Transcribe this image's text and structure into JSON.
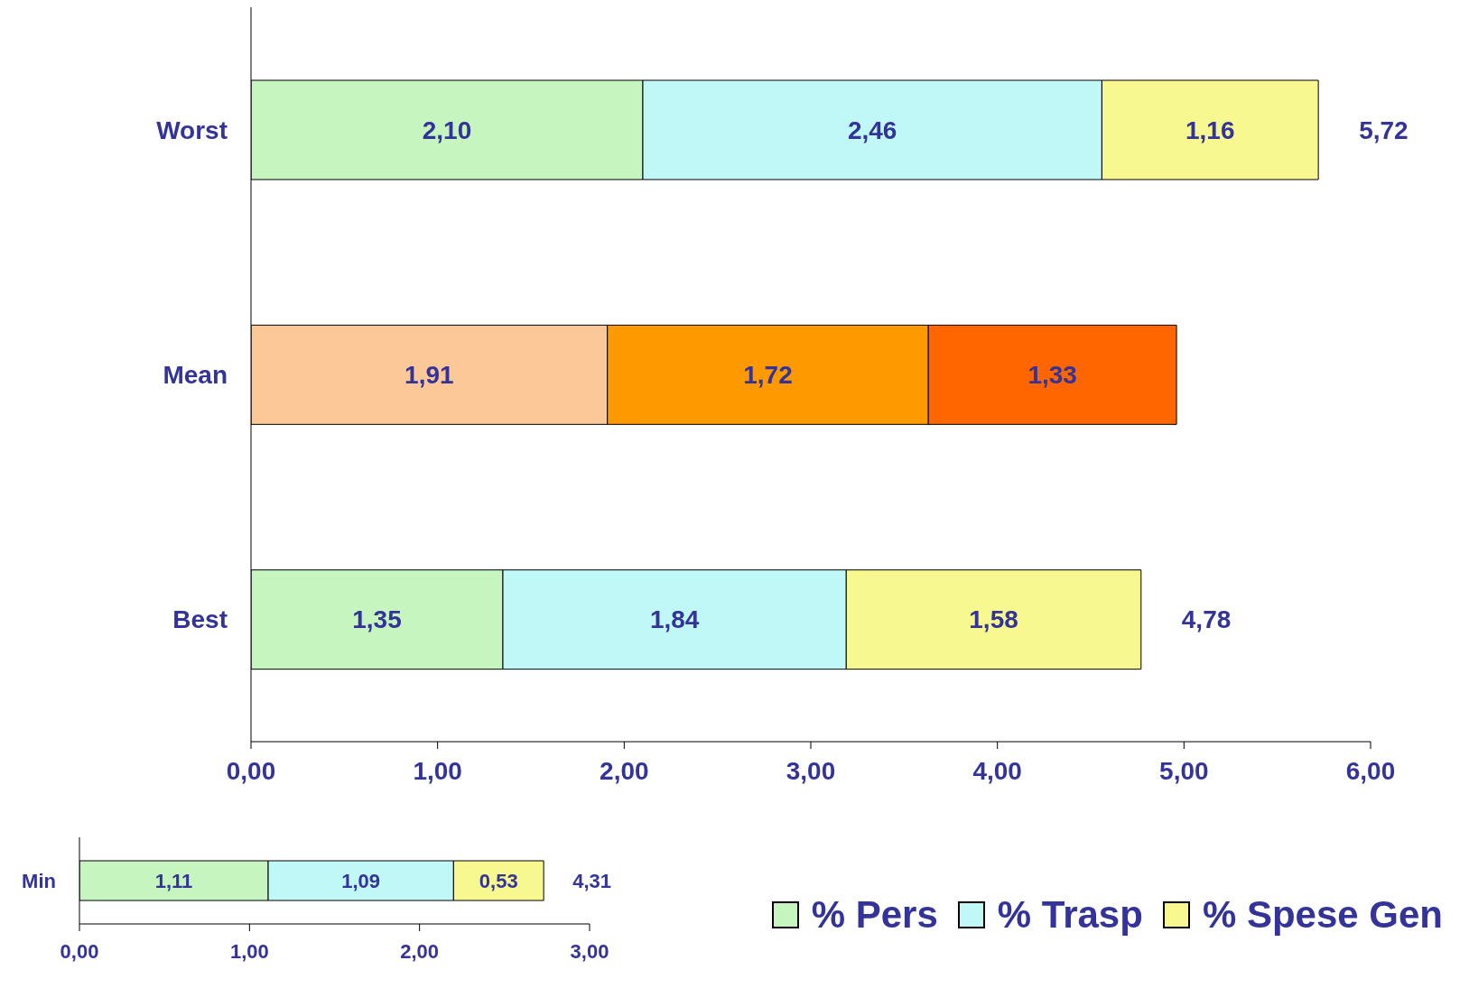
{
  "chart_data": [
    {
      "type": "bar",
      "orientation": "horizontal",
      "stacked": true,
      "categories": [
        "Worst",
        "Mean",
        "Best"
      ],
      "series": [
        {
          "name": "% Pers",
          "color": "#c6f5c0",
          "colors": [
            "#c6f5c0",
            "#fcc898",
            "#c6f5c0"
          ],
          "values": [
            2.1,
            1.91,
            1.35
          ],
          "value_labels": [
            "2,10",
            "1,91",
            "1,35"
          ]
        },
        {
          "name": "% Trasp",
          "color": "#c0f8f8",
          "colors": [
            "#c0f8f8",
            "#ff9900",
            "#c0f8f8"
          ],
          "values": [
            2.46,
            1.72,
            1.84
          ],
          "value_labels": [
            "2,46",
            "1,72",
            "1,84"
          ]
        },
        {
          "name": "% Spese Gen",
          "color": "#f8f890",
          "colors": [
            "#f8f890",
            "#ff6600",
            "#f8f890"
          ],
          "values": [
            1.16,
            1.33,
            1.58
          ],
          "value_labels": [
            "1,16",
            "1,33",
            "1,58"
          ]
        }
      ],
      "xlim": [
        0,
        6
      ],
      "xticks": [
        {
          "value": 0,
          "label": "0,00"
        },
        {
          "value": 1,
          "label": "1,00"
        },
        {
          "value": 2,
          "label": "2,00"
        },
        {
          "value": 3,
          "label": "3,00"
        },
        {
          "value": 4,
          "label": "4,00"
        },
        {
          "value": 5,
          "label": "5,00"
        },
        {
          "value": 6,
          "label": "6,00"
        }
      ],
      "totals": [
        "5,72",
        null,
        "4,78"
      ],
      "legend": "bottom right"
    },
    {
      "type": "bar",
      "orientation": "horizontal",
      "stacked": true,
      "categories": [
        "Min"
      ],
      "series": [
        {
          "color": "#c6f5c0",
          "values": [
            1.11
          ],
          "value_labels": [
            "1,11"
          ]
        },
        {
          "color": "#c0f8f8",
          "values": [
            1.09
          ],
          "value_labels": [
            "1,09"
          ]
        },
        {
          "color": "#f8f890",
          "values": [
            0.53
          ],
          "value_labels": [
            "0,53"
          ]
        }
      ],
      "xlim": [
        0,
        3
      ],
      "xticks": [
        {
          "value": 0,
          "label": "0,00"
        },
        {
          "value": 1,
          "label": "1,00"
        },
        {
          "value": 2,
          "label": "2,00"
        },
        {
          "value": 3,
          "label": "3,00"
        }
      ],
      "annotations": [
        "4,31"
      ]
    }
  ]
}
